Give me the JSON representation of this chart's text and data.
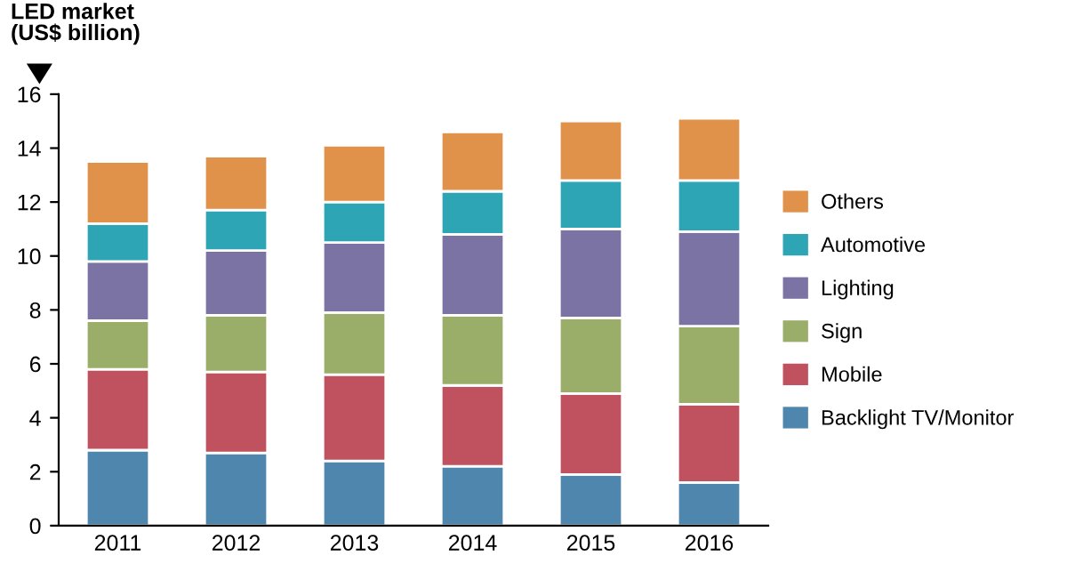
{
  "chart_data": {
    "type": "bar",
    "stacked": true,
    "ylabel": "LED market\n(US$ billion)",
    "categories": [
      "2011",
      "2012",
      "2013",
      "2014",
      "2015",
      "2016"
    ],
    "series": [
      {
        "name": "Backlight TV/Monitor",
        "color": "#4e86ad",
        "values": [
          2.8,
          2.7,
          2.4,
          2.2,
          1.9,
          1.6
        ]
      },
      {
        "name": "Mobile",
        "color": "#c0525f",
        "values": [
          3.0,
          3.0,
          3.2,
          3.0,
          3.0,
          2.9
        ]
      },
      {
        "name": "Sign",
        "color": "#9aae6a",
        "values": [
          1.8,
          2.1,
          2.3,
          2.6,
          2.8,
          2.9
        ]
      },
      {
        "name": "Lighting",
        "color": "#7b73a3",
        "values": [
          2.2,
          2.4,
          2.6,
          3.0,
          3.3,
          3.5
        ]
      },
      {
        "name": "Automotive",
        "color": "#2ea5b5",
        "values": [
          1.4,
          1.5,
          1.5,
          1.6,
          1.8,
          1.9
        ]
      },
      {
        "name": "Others",
        "color": "#e0914a",
        "values": [
          2.3,
          2.0,
          2.1,
          2.2,
          2.2,
          2.3
        ]
      }
    ],
    "ylim": [
      0,
      16
    ],
    "yticks": [
      0,
      2,
      4,
      6,
      8,
      10,
      12,
      14,
      16
    ],
    "grid": false,
    "legend": "right"
  }
}
